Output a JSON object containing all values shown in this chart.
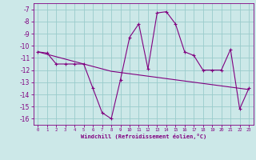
{
  "x": [
    0,
    1,
    2,
    3,
    4,
    5,
    6,
    7,
    8,
    9,
    10,
    11,
    12,
    13,
    14,
    15,
    16,
    17,
    18,
    19,
    20,
    21,
    22,
    23
  ],
  "windchill": [
    -10.5,
    -10.6,
    -11.5,
    -11.5,
    -11.5,
    -11.5,
    -13.5,
    -15.5,
    -16.0,
    -12.8,
    -9.3,
    -8.2,
    -11.9,
    -7.3,
    -7.2,
    -8.2,
    -10.5,
    -10.8,
    -12.0,
    -12.0,
    -12.0,
    -10.3,
    -15.2,
    -13.5
  ],
  "trend": [
    -10.5,
    -10.7,
    -10.9,
    -11.1,
    -11.3,
    -11.5,
    -11.7,
    -11.9,
    -12.1,
    -12.2,
    -12.3,
    -12.4,
    -12.5,
    -12.6,
    -12.7,
    -12.8,
    -12.9,
    -13.0,
    -13.1,
    -13.2,
    -13.3,
    -13.4,
    -13.5,
    -13.6
  ],
  "line_color": "#800080",
  "bg_color": "#cce8e8",
  "grid_color": "#99cccc",
  "xlabel": "Windchill (Refroidissement éolien,°C)",
  "ylim": [
    -16.5,
    -6.5
  ],
  "xlim": [
    -0.5,
    23.5
  ],
  "yticks": [
    -16,
    -15,
    -14,
    -13,
    -12,
    -11,
    -10,
    -9,
    -8,
    -7
  ],
  "xticks": [
    0,
    1,
    2,
    3,
    4,
    5,
    6,
    7,
    8,
    9,
    10,
    11,
    12,
    13,
    14,
    15,
    16,
    17,
    18,
    19,
    20,
    21,
    22,
    23
  ]
}
